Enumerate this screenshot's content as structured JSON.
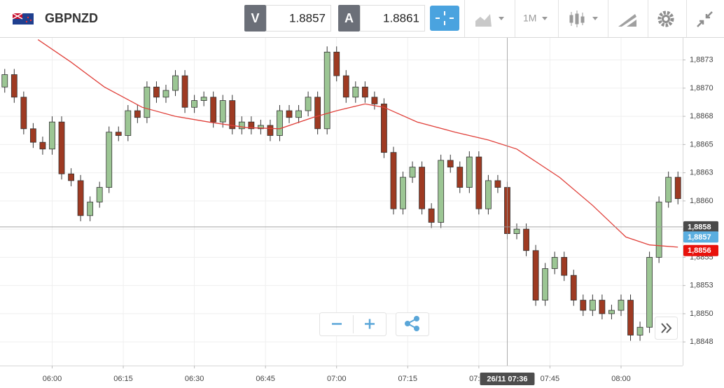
{
  "header": {
    "symbol": "GBPNZD",
    "bid_tag": "V",
    "bid": 1.8857,
    "ask_tag": "A",
    "ask": 1.8861,
    "interval": "1M"
  },
  "chart_data": {
    "type": "candlestick",
    "xlim": [
      "05:49",
      "08:13"
    ],
    "xticks": [
      "06:00",
      "06:15",
      "06:30",
      "06:45",
      "07:00",
      "07:15",
      "07:30",
      "07:45",
      "08:00"
    ],
    "ylim": [
      1.88459,
      1.88749
    ],
    "yticks": [
      {
        "value": 1.8873,
        "label": "1,8873"
      },
      {
        "value": 1.88705,
        "label": "1,8870"
      },
      {
        "value": 1.8868,
        "label": "1,8868"
      },
      {
        "value": 1.88655,
        "label": "1,8865"
      },
      {
        "value": 1.8863,
        "label": "1,8863"
      },
      {
        "value": 1.88605,
        "label": "1,8860"
      },
      {
        "value": 1.8858,
        "label": "1,8858"
      },
      {
        "value": 1.88555,
        "label": "1,8855"
      },
      {
        "value": 1.8853,
        "label": "1,8853"
      },
      {
        "value": 1.88505,
        "label": "1,8850"
      },
      {
        "value": 1.8848,
        "label": "1,8848"
      }
    ],
    "grid": true,
    "up_color": "#9cc694",
    "down_color": "#9e3a22",
    "x": [
      "05:50",
      "05:52",
      "05:54",
      "05:56",
      "05:58",
      "06:00",
      "06:02",
      "06:04",
      "06:06",
      "06:08",
      "06:10",
      "06:12",
      "06:14",
      "06:16",
      "06:18",
      "06:20",
      "06:22",
      "06:24",
      "06:26",
      "06:28",
      "06:30",
      "06:32",
      "06:34",
      "06:36",
      "06:38",
      "06:40",
      "06:42",
      "06:44",
      "06:46",
      "06:48",
      "06:50",
      "06:52",
      "06:54",
      "06:56",
      "06:58",
      "07:00",
      "07:02",
      "07:04",
      "07:06",
      "07:08",
      "07:10",
      "07:12",
      "07:14",
      "07:16",
      "07:18",
      "07:20",
      "07:22",
      "07:24",
      "07:26",
      "07:28",
      "07:30",
      "07:32",
      "07:34",
      "07:36",
      "07:38",
      "07:40",
      "07:42",
      "07:44",
      "07:46",
      "07:48",
      "07:50",
      "07:52",
      "07:54",
      "07:56",
      "07:58",
      "08:00",
      "08:02",
      "08:04",
      "08:06",
      "08:08",
      "08:10",
      "08:12"
    ],
    "open": [
      1.88706,
      1.88717,
      1.88697,
      1.88669,
      1.88657,
      1.88651,
      1.88675,
      1.88629,
      1.88623,
      1.88592,
      1.88604,
      1.88617,
      1.88666,
      1.88663,
      1.88685,
      1.88679,
      1.88706,
      1.88697,
      1.88703,
      1.88716,
      1.88688,
      1.88694,
      1.88697,
      1.88675,
      1.88694,
      1.88669,
      1.88675,
      1.88669,
      1.88672,
      1.88663,
      1.88685,
      1.88679,
      1.88685,
      1.88697,
      1.88669,
      1.88737,
      1.88716,
      1.88697,
      1.88706,
      1.88697,
      1.88691,
      1.88648,
      1.88598,
      1.88626,
      1.88635,
      1.88598,
      1.88586,
      1.88641,
      1.88635,
      1.88617,
      1.88644,
      1.88598,
      1.88623,
      1.88617,
      1.88576,
      1.8858,
      1.88561,
      1.88517,
      1.88545,
      1.88555,
      1.88539,
      1.88517,
      1.88508,
      1.88517,
      1.88505,
      1.88508,
      1.88517,
      1.88486,
      1.88493,
      1.88555,
      1.88604,
      1.88626
    ],
    "high": [
      1.88722,
      1.88722,
      1.88702,
      1.88674,
      1.88662,
      1.8868,
      1.8868,
      1.88634,
      1.88628,
      1.88609,
      1.88622,
      1.88671,
      1.88671,
      1.8869,
      1.8869,
      1.88711,
      1.88711,
      1.88708,
      1.88721,
      1.88721,
      1.88699,
      1.88702,
      1.88702,
      1.88699,
      1.88699,
      1.8868,
      1.8868,
      1.88677,
      1.88677,
      1.8869,
      1.8869,
      1.8869,
      1.88702,
      1.88702,
      1.88742,
      1.88742,
      1.88721,
      1.88711,
      1.88711,
      1.88702,
      1.88696,
      1.88653,
      1.88631,
      1.8864,
      1.8864,
      1.88603,
      1.88646,
      1.88646,
      1.8864,
      1.88649,
      1.88649,
      1.88628,
      1.88628,
      1.88622,
      1.88585,
      1.88585,
      1.88566,
      1.8855,
      1.8856,
      1.8856,
      1.88544,
      1.88522,
      1.88522,
      1.88522,
      1.88513,
      1.88522,
      1.88522,
      1.88498,
      1.8856,
      1.88609,
      1.88631,
      1.88631
    ],
    "low": [
      1.88701,
      1.88692,
      1.88664,
      1.88652,
      1.88646,
      1.88646,
      1.88624,
      1.88618,
      1.88587,
      1.88587,
      1.88599,
      1.88612,
      1.88658,
      1.88658,
      1.88674,
      1.88674,
      1.88692,
      1.88692,
      1.88698,
      1.88683,
      1.88683,
      1.88689,
      1.8867,
      1.8867,
      1.88664,
      1.88664,
      1.88664,
      1.88664,
      1.88658,
      1.88658,
      1.88674,
      1.88674,
      1.8868,
      1.88664,
      1.88664,
      1.88711,
      1.88692,
      1.88692,
      1.88692,
      1.88686,
      1.88643,
      1.88593,
      1.88593,
      1.88621,
      1.88593,
      1.88581,
      1.88581,
      1.8863,
      1.88612,
      1.88612,
      1.88593,
      1.88593,
      1.88612,
      1.88571,
      1.88571,
      1.88556,
      1.88512,
      1.88512,
      1.8854,
      1.88534,
      1.88512,
      1.88503,
      1.88503,
      1.885,
      1.885,
      1.88503,
      1.88481,
      1.88481,
      1.88488,
      1.8855,
      1.88599,
      1.88602
    ],
    "close": [
      1.88717,
      1.88697,
      1.88669,
      1.88657,
      1.88651,
      1.88675,
      1.88629,
      1.88623,
      1.88592,
      1.88604,
      1.88617,
      1.88666,
      1.88663,
      1.88685,
      1.88679,
      1.88706,
      1.88697,
      1.88703,
      1.88716,
      1.88688,
      1.88694,
      1.88697,
      1.88675,
      1.88694,
      1.88669,
      1.88675,
      1.88669,
      1.88672,
      1.88663,
      1.88685,
      1.88679,
      1.88685,
      1.88697,
      1.88669,
      1.88737,
      1.88716,
      1.88697,
      1.88706,
      1.88697,
      1.88691,
      1.88648,
      1.88598,
      1.88626,
      1.88635,
      1.88598,
      1.88586,
      1.88641,
      1.88635,
      1.88617,
      1.88644,
      1.88598,
      1.88623,
      1.88617,
      1.88576,
      1.8858,
      1.88561,
      1.88517,
      1.88545,
      1.88555,
      1.88539,
      1.88517,
      1.88508,
      1.88517,
      1.88505,
      1.88508,
      1.88517,
      1.88486,
      1.88493,
      1.88555,
      1.88604,
      1.88626,
      1.88607
    ],
    "ma": {
      "color": "#e0403a",
      "x": [
        "05:57",
        "06:04",
        "06:11",
        "06:19",
        "06:26",
        "06:33",
        "06:41",
        "06:48",
        "06:55",
        "07:00",
        "07:06",
        "07:10",
        "07:17",
        "07:25",
        "07:32",
        "07:38",
        "07:47",
        "07:54",
        "08:01",
        "08:06",
        "08:12"
      ],
      "values": [
        1.88748,
        1.88728,
        1.88706,
        1.88688,
        1.8868,
        1.88675,
        1.8867,
        1.88669,
        1.88679,
        1.88685,
        1.88691,
        1.88688,
        1.88675,
        1.88666,
        1.88659,
        1.88651,
        1.88626,
        1.88601,
        1.88573,
        1.88566,
        1.88564
      ]
    },
    "price_tags": [
      {
        "value": 1.88582,
        "label": "1,8858",
        "color": "#4a4a4a"
      },
      {
        "value": 1.88573,
        "label": "1,8857",
        "color": "#5aaee0"
      },
      {
        "value": 1.88561,
        "label": "1,8856",
        "color": "#e8120c"
      }
    ],
    "crosshair": {
      "x": "07:36",
      "label": "26/11 07:36"
    }
  }
}
